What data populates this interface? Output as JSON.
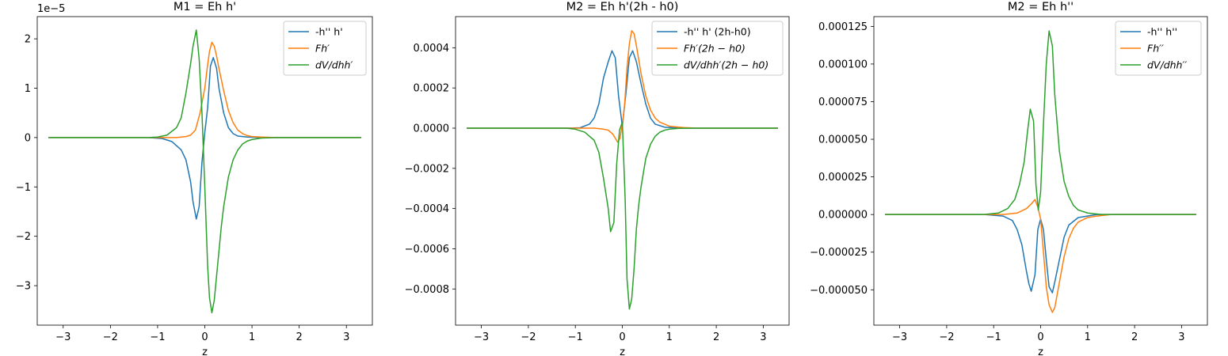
{
  "colors": {
    "blue": "#1f77b4",
    "orange": "#ff7f0e",
    "green": "#2ca02c"
  },
  "chart_data": [
    {
      "type": "line",
      "title": "M1 = Eh h'",
      "xlabel": "z",
      "ylabel": "",
      "xlim": [
        -3.55,
        3.55
      ],
      "ylim": [
        -3.8e-05,
        2.45e-05
      ],
      "offset_label": "1e−5",
      "x_ticks": [
        -3,
        -2,
        -1,
        0,
        1,
        2,
        3
      ],
      "x_tick_labels": [
        "−3",
        "−2",
        "−1",
        "0",
        "1",
        "2",
        "3"
      ],
      "y_ticks": [
        2e-05,
        1e-05,
        0,
        -1e-05,
        -2e-05,
        -3e-05
      ],
      "y_tick_labels": [
        "2",
        "1",
        "0",
        "−1",
        "−2",
        "−3"
      ],
      "legend_position": "top-right",
      "series": [
        {
          "name": "-h'' h'",
          "color_key": "blue",
          "x": [
            -3.3,
            -1.2,
            -0.9,
            -0.7,
            -0.5,
            -0.4,
            -0.3,
            -0.25,
            -0.18,
            -0.12,
            -0.06,
            0.0,
            0.06,
            0.12,
            0.18,
            0.25,
            0.3,
            0.4,
            0.5,
            0.6,
            0.7,
            0.9,
            1.2,
            3.3
          ],
          "y": [
            0,
            0,
            -2e-07,
            -8e-07,
            -2.5e-06,
            -4.5e-06,
            -9e-06,
            -1.3e-05,
            -1.65e-05,
            -1.4e-05,
            -5e-06,
            1e-06,
            6e-06,
            1.45e-05,
            1.62e-05,
            1.4e-05,
            1e-05,
            5e-06,
            2e-06,
            8e-07,
            3e-07,
            1e-07,
            0,
            0
          ]
        },
        {
          "name": "Fh′",
          "color_key": "orange",
          "x": [
            -3.3,
            -0.6,
            -0.4,
            -0.3,
            -0.2,
            -0.1,
            0.0,
            0.05,
            0.1,
            0.15,
            0.2,
            0.25,
            0.3,
            0.4,
            0.5,
            0.6,
            0.7,
            0.8,
            0.9,
            1.0,
            1.2,
            1.5,
            3.3
          ],
          "y": [
            0,
            0,
            2e-07,
            5e-07,
            1.5e-06,
            5e-06,
            1e-05,
            1.4e-05,
            1.75e-05,
            1.93e-05,
            1.85e-05,
            1.65e-05,
            1.4e-05,
            9.5e-06,
            5.5e-06,
            3e-06,
            1.5e-06,
            8e-07,
            4e-07,
            2e-07,
            1e-07,
            0,
            0
          ]
        },
        {
          "name": "dV/dhh′",
          "color_key": "green",
          "x": [
            -3.3,
            -1.2,
            -1.0,
            -0.8,
            -0.6,
            -0.5,
            -0.4,
            -0.3,
            -0.25,
            -0.18,
            -0.12,
            -0.06,
            0.0,
            0.06,
            0.1,
            0.15,
            0.2,
            0.25,
            0.3,
            0.35,
            0.4,
            0.5,
            0.6,
            0.7,
            0.8,
            0.9,
            1.0,
            1.2,
            1.5,
            3.3
          ],
          "y": [
            0,
            0,
            1e-07,
            5e-07,
            2e-06,
            4e-06,
            9e-06,
            1.5e-05,
            1.85e-05,
            2.18e-05,
            1.6e-05,
            5e-06,
            -1e-05,
            -2.6e-05,
            -3.25e-05,
            -3.55e-05,
            -3.3e-05,
            -2.8e-05,
            -2.3e-05,
            -1.8e-05,
            -1.4e-05,
            -8e-06,
            -4.5e-06,
            -2.5e-06,
            -1.3e-06,
            -7e-07,
            -4e-07,
            -1e-07,
            0,
            0
          ]
        }
      ]
    },
    {
      "type": "line",
      "title": "M2 = Eh h'(2h - h0)",
      "xlabel": "z",
      "ylabel": "",
      "xlim": [
        -3.55,
        3.55
      ],
      "ylim": [
        -0.00098,
        0.000555
      ],
      "x_ticks": [
        -3,
        -2,
        -1,
        0,
        1,
        2,
        3
      ],
      "x_tick_labels": [
        "−3",
        "−2",
        "−1",
        "0",
        "1",
        "2",
        "3"
      ],
      "y_ticks": [
        0.0004,
        0.0002,
        0,
        -0.0002,
        -0.0004,
        -0.0006,
        -0.0008
      ],
      "y_tick_labels": [
        "0.0004",
        "0.0002",
        "0.0000",
        "−0.0002",
        "−0.0004",
        "−0.0006",
        "−0.0008"
      ],
      "legend_position": "top-right",
      "series": [
        {
          "name": "-h'' h' (2h-h0)",
          "color_key": "blue",
          "x": [
            -3.3,
            -1.2,
            -0.9,
            -0.7,
            -0.6,
            -0.5,
            -0.4,
            -0.3,
            -0.22,
            -0.15,
            -0.08,
            0.0,
            0.08,
            0.15,
            0.22,
            0.3,
            0.4,
            0.5,
            0.6,
            0.7,
            0.9,
            1.2,
            3.3
          ],
          "y": [
            0,
            0,
            2e-06,
            2e-05,
            5e-05,
            0.00012,
            0.00025,
            0.00033,
            0.000385,
            0.00035,
            0.00016,
            1e-05,
            0.00018,
            0.00035,
            0.000385,
            0.00033,
            0.00022,
            0.00012,
            5e-05,
            2e-05,
            5e-06,
            0,
            0
          ]
        },
        {
          "name": "Fh′(2h − h0)",
          "color_key": "orange",
          "x": [
            -3.3,
            -0.6,
            -0.4,
            -0.3,
            -0.2,
            -0.1,
            -0.05,
            0.0,
            0.05,
            0.1,
            0.15,
            0.2,
            0.25,
            0.3,
            0.4,
            0.5,
            0.6,
            0.7,
            0.8,
            1.0,
            1.3,
            1.6,
            3.3
          ],
          "y": [
            0,
            0,
            -5e-06,
            -1e-05,
            -3e-05,
            -7e-05,
            -5e-05,
            2e-05,
            0.00012,
            0.0003,
            0.00042,
            0.000485,
            0.00047,
            0.00041,
            0.00027,
            0.00016,
            9e-05,
            5e-05,
            3e-05,
            1e-05,
            3e-06,
            0,
            0
          ]
        },
        {
          "name": "dV/dhh′(2h − h0)",
          "color_key": "green",
          "x": [
            -3.3,
            -1.2,
            -1.0,
            -0.8,
            -0.6,
            -0.5,
            -0.4,
            -0.3,
            -0.25,
            -0.18,
            -0.12,
            -0.06,
            0.0,
            0.06,
            0.1,
            0.15,
            0.2,
            0.25,
            0.3,
            0.35,
            0.4,
            0.5,
            0.6,
            0.7,
            0.8,
            0.9,
            1.0,
            1.2,
            1.5,
            3.3
          ],
          "y": [
            0,
            0,
            -5e-06,
            -2e-05,
            -6e-05,
            -0.00012,
            -0.00025,
            -0.0004,
            -0.000515,
            -0.00047,
            -0.00018,
            -1e-05,
            3e-05,
            -0.00035,
            -0.00075,
            -0.0009,
            -0.00085,
            -0.0007,
            -0.0005,
            -0.00038,
            -0.00029,
            -0.00015,
            -8e-05,
            -4e-05,
            -2e-05,
            -1e-05,
            -5e-06,
            -1e-06,
            0,
            0
          ]
        }
      ]
    },
    {
      "type": "line",
      "title": "M2 = Eh h''",
      "xlabel": "z",
      "ylabel": "",
      "xlim": [
        -3.55,
        3.55
      ],
      "ylim": [
        -7.35e-05,
        0.0001315
      ],
      "x_ticks": [
        -3,
        -2,
        -1,
        0,
        1,
        2,
        3
      ],
      "x_tick_labels": [
        "−3",
        "−2",
        "−1",
        "0",
        "1",
        "2",
        "3"
      ],
      "y_ticks": [
        0.000125,
        0.0001,
        7.5e-05,
        5e-05,
        2.5e-05,
        0,
        -2.5e-05,
        -5e-05
      ],
      "y_tick_labels": [
        "0.000125",
        "0.000100",
        "0.000075",
        "0.000050",
        "0.000025",
        "0.000000",
        "−0.000025",
        "−0.000050"
      ],
      "legend_position": "top-right",
      "series": [
        {
          "name": "-h'' h''",
          "color_key": "blue",
          "x": [
            -3.3,
            -1.2,
            -0.8,
            -0.6,
            -0.5,
            -0.4,
            -0.3,
            -0.25,
            -0.2,
            -0.12,
            -0.06,
            0.0,
            0.06,
            0.12,
            0.18,
            0.25,
            0.3,
            0.4,
            0.5,
            0.6,
            0.8,
            1.2,
            3.3
          ],
          "y": [
            0,
            0,
            -1e-06,
            -4e-06,
            -1e-05,
            -2e-05,
            -3.8e-05,
            -4.6e-05,
            -5.1e-05,
            -4e-05,
            -1e-05,
            -3e-06,
            -1e-05,
            -3e-05,
            -4.8e-05,
            -5.2e-05,
            -4.5e-05,
            -3e-05,
            -1.5e-05,
            -7e-06,
            -2e-06,
            0,
            0
          ]
        },
        {
          "name": "Fh′′",
          "color_key": "orange",
          "x": [
            -3.3,
            -0.8,
            -0.5,
            -0.3,
            -0.2,
            -0.12,
            -0.06,
            0.0,
            0.06,
            0.12,
            0.18,
            0.25,
            0.3,
            0.4,
            0.5,
            0.6,
            0.7,
            0.8,
            1.0,
            1.2,
            1.5,
            2.0,
            3.3
          ],
          "y": [
            0,
            0,
            1e-06,
            4e-06,
            7e-06,
            1e-05,
            5e-06,
            -3e-06,
            -2.5e-05,
            -4.8e-05,
            -6e-05,
            -6.5e-05,
            -6.2e-05,
            -4.5e-05,
            -2.8e-05,
            -1.6e-05,
            -9e-06,
            -5e-06,
            -2e-06,
            -1e-06,
            0,
            0,
            0
          ]
        },
        {
          "name": "dV/dhh′′",
          "color_key": "green",
          "x": [
            -3.3,
            -1.2,
            -0.9,
            -0.7,
            -0.55,
            -0.45,
            -0.35,
            -0.28,
            -0.22,
            -0.15,
            -0.1,
            -0.05,
            0.0,
            0.06,
            0.12,
            0.18,
            0.25,
            0.3,
            0.4,
            0.5,
            0.6,
            0.7,
            0.8,
            1.0,
            1.3,
            1.6,
            3.3
          ],
          "y": [
            0,
            0,
            1e-06,
            4e-06,
            1e-05,
            2e-05,
            3.5e-05,
            5.5e-05,
            7e-05,
            6.2e-05,
            2e-05,
            3e-06,
            1.5e-05,
            6e-05,
            0.0001,
            0.000122,
            0.000112,
            8e-05,
            4.2e-05,
            2.2e-05,
            1.2e-05,
            6e-06,
            3e-06,
            1e-06,
            0,
            0,
            0
          ]
        }
      ]
    }
  ]
}
